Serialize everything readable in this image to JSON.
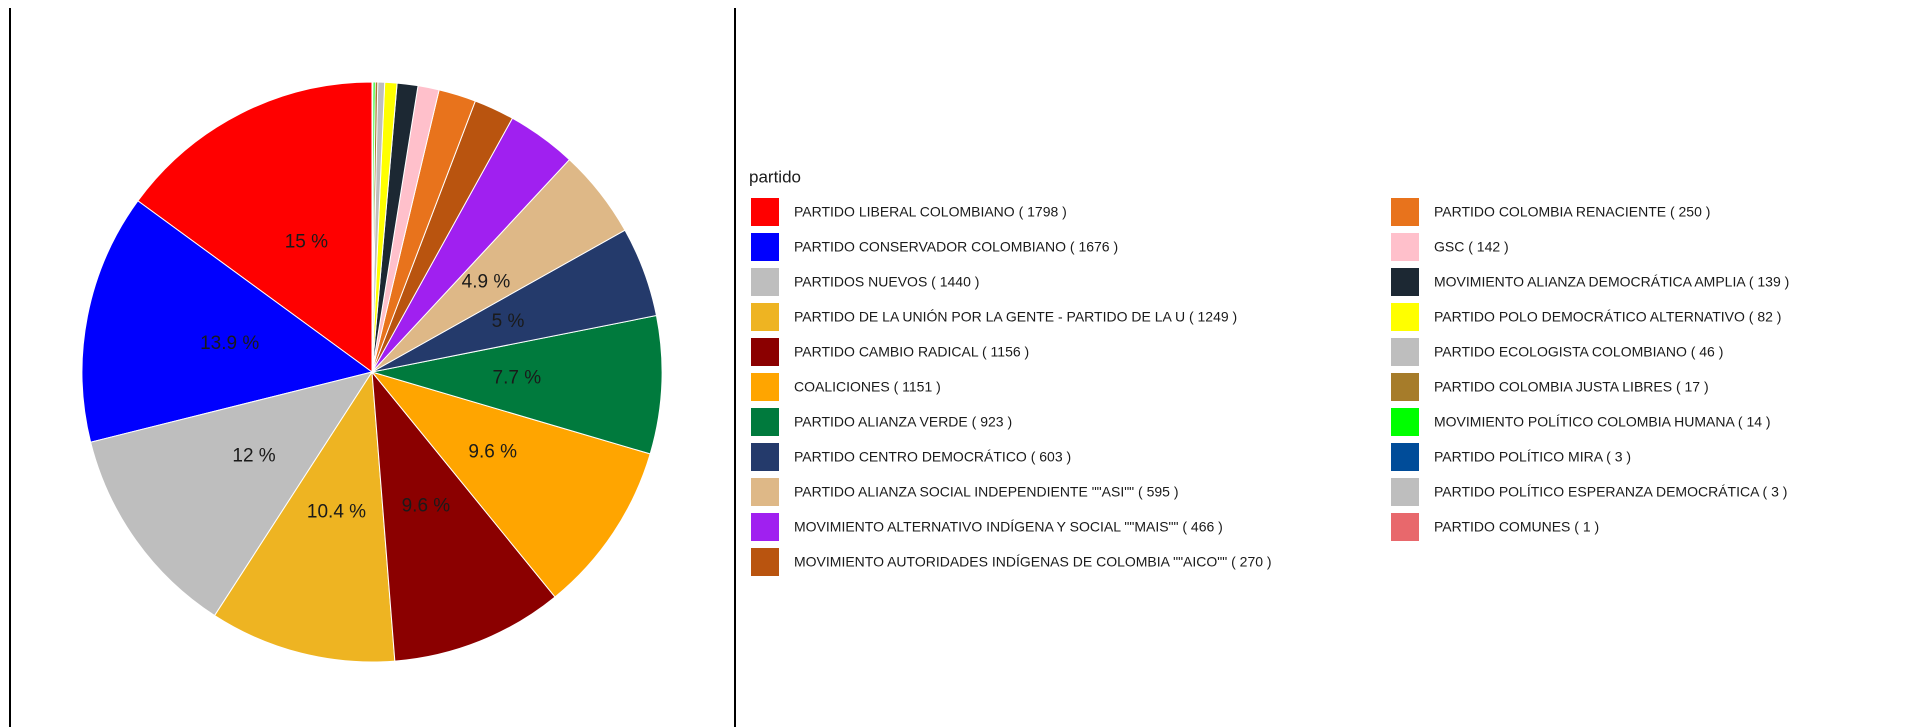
{
  "chart_data": {
    "type": "pie",
    "legend_title": "partido",
    "categories": [
      "PARTIDO LIBERAL COLOMBIANO ( 1798 )",
      "PARTIDO CONSERVADOR COLOMBIANO ( 1676 )",
      "PARTIDOS NUEVOS ( 1440 )",
      "PARTIDO DE LA UNIÓN POR LA GENTE - PARTIDO DE LA U ( 1249 )",
      "PARTIDO CAMBIO RADICAL ( 1156 )",
      "COALICIONES ( 1151 )",
      "PARTIDO ALIANZA VERDE ( 923 )",
      "PARTIDO CENTRO DEMOCRÁTICO ( 603 )",
      "PARTIDO ALIANZA SOCIAL INDEPENDIENTE \"\"ASI\"\" ( 595 )",
      "MOVIMIENTO ALTERNATIVO INDÍGENA Y SOCIAL \"\"MAIS\"\" ( 466 )",
      "MOVIMIENTO AUTORIDADES INDÍGENAS DE COLOMBIA \"\"AICO\"\" ( 270 )",
      "PARTIDO COLOMBIA RENACIENTE ( 250 )",
      "GSC ( 142 )",
      "MOVIMIENTO ALIANZA DEMOCRÁTICA AMPLIA ( 139 )",
      "PARTIDO POLO DEMOCRÁTICO ALTERNATIVO ( 82 )",
      "PARTIDO ECOLOGISTA COLOMBIANO ( 46 )",
      "PARTIDO COLOMBIA JUSTA LIBRES ( 17 )",
      "MOVIMIENTO POLÍTICO COLOMBIA HUMANA ( 14 )",
      "PARTIDO POLÍTICO MIRA ( 3 )",
      "PARTIDO POLÍTICO ESPERANZA DEMOCRÁTICA ( 3 )",
      "PARTIDO COMUNES ( 1 )"
    ],
    "values": [
      1798,
      1676,
      1440,
      1249,
      1156,
      1151,
      923,
      603,
      595,
      466,
      270,
      250,
      142,
      139,
      82,
      46,
      17,
      14,
      3,
      3,
      1
    ],
    "value_labels": [
      "15 %",
      "13.9 %",
      "12 %",
      "10.4 %",
      "9.6 %",
      "9.6 %",
      "7.7 %",
      "5 %",
      "4.9 %",
      null,
      null,
      null,
      null,
      null,
      null,
      null,
      null,
      null,
      null,
      null,
      null
    ],
    "colors": [
      "#ff0000",
      "#0000ff",
      "#bebebe",
      "#eeb422",
      "#8b0000",
      "#ffa500",
      "#007a3d",
      "#243a6b",
      "#deb887",
      "#a020f0",
      "#b9540f",
      "#e8731c",
      "#ffc0cb",
      "#1c2833",
      "#ffff00",
      "#bebebe",
      "#a67c2a",
      "#00ff00",
      "#004c99",
      "#bebebe",
      "#e8686c"
    ]
  }
}
